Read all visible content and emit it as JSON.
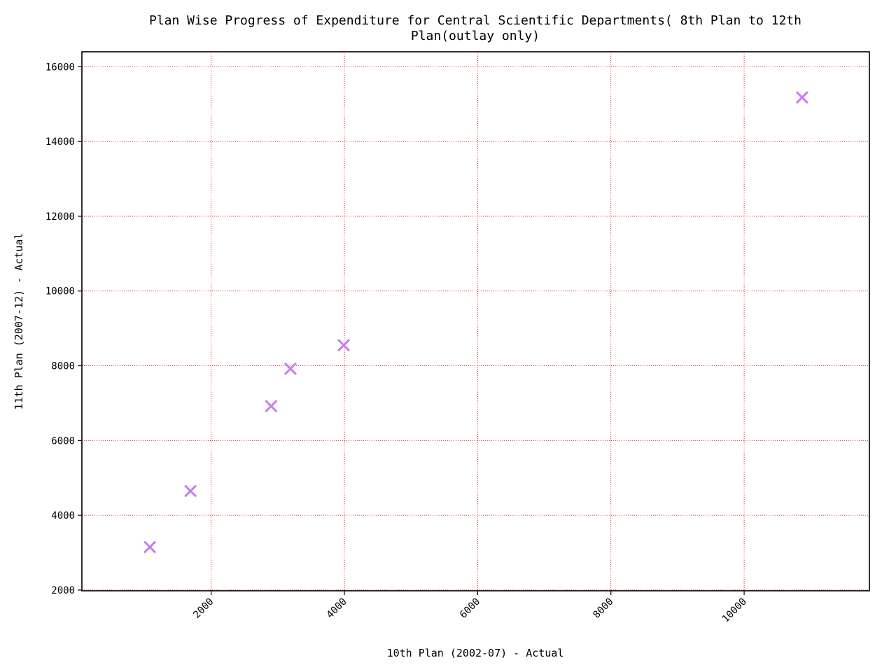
{
  "chart_data": {
    "type": "scatter",
    "title_lines": [
      "Plan Wise Progress of Expenditure for Central Scientific Departments( 8th Plan to 12th",
      "Plan(outlay only)"
    ],
    "xlabel": "10th Plan (2002-07) - Actual",
    "ylabel": "11th Plan (2007-12) - Actual",
    "xlim": [
      60,
      11880
    ],
    "ylim": [
      1980,
      16400
    ],
    "xticks": [
      2000,
      4000,
      6000,
      8000,
      10000
    ],
    "yticks": [
      2000,
      4000,
      6000,
      8000,
      10000,
      12000,
      14000,
      16000
    ],
    "grid": true,
    "marker": "x",
    "colors": {
      "marker": "#c77df0",
      "grid": "#e00000",
      "axes": "#000000"
    },
    "points": [
      {
        "x": 1080,
        "y": 3150
      },
      {
        "x": 1690,
        "y": 4650
      },
      {
        "x": 2900,
        "y": 6920
      },
      {
        "x": 3190,
        "y": 7920
      },
      {
        "x": 3990,
        "y": 8550
      },
      {
        "x": 10870,
        "y": 15180
      }
    ]
  }
}
